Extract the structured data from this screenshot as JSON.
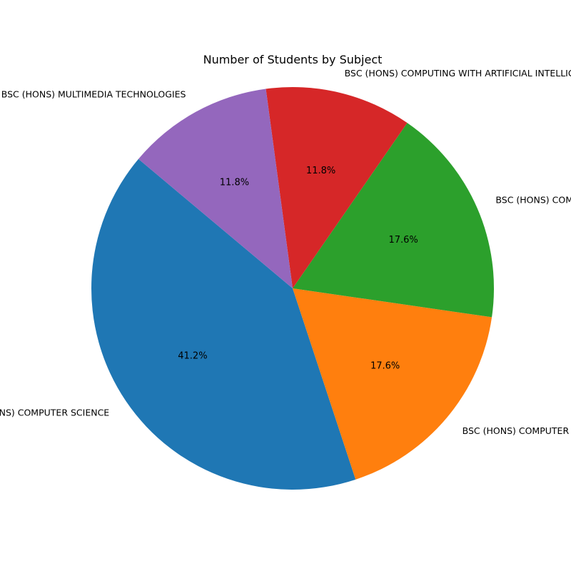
{
  "chart_data": {
    "type": "pie",
    "title": "Number of Students by Subject",
    "categories": [
      "BSC (HONS) COMPUTER SCIENCE",
      "BSC (HONS) COMPUTER SCIENCE",
      "BSC (HONS) COMPUTING",
      "BSC (HONS) COMPUTING WITH ARTIFICIAL INTELLIGENCE",
      "BSC (HONS) MULTIMEDIA TECHNOLOGIES"
    ],
    "values": [
      7,
      3,
      3,
      2,
      2
    ],
    "percent_labels": [
      "41.2%",
      "17.6%",
      "17.6%",
      "11.8%",
      "11.8%"
    ],
    "colors": [
      "#1f77b4",
      "#ff7f0e",
      "#2ca02c",
      "#d62728",
      "#9467bd"
    ],
    "start_angle_deg": 140,
    "direction": "counterclockwise",
    "legend": "none"
  }
}
